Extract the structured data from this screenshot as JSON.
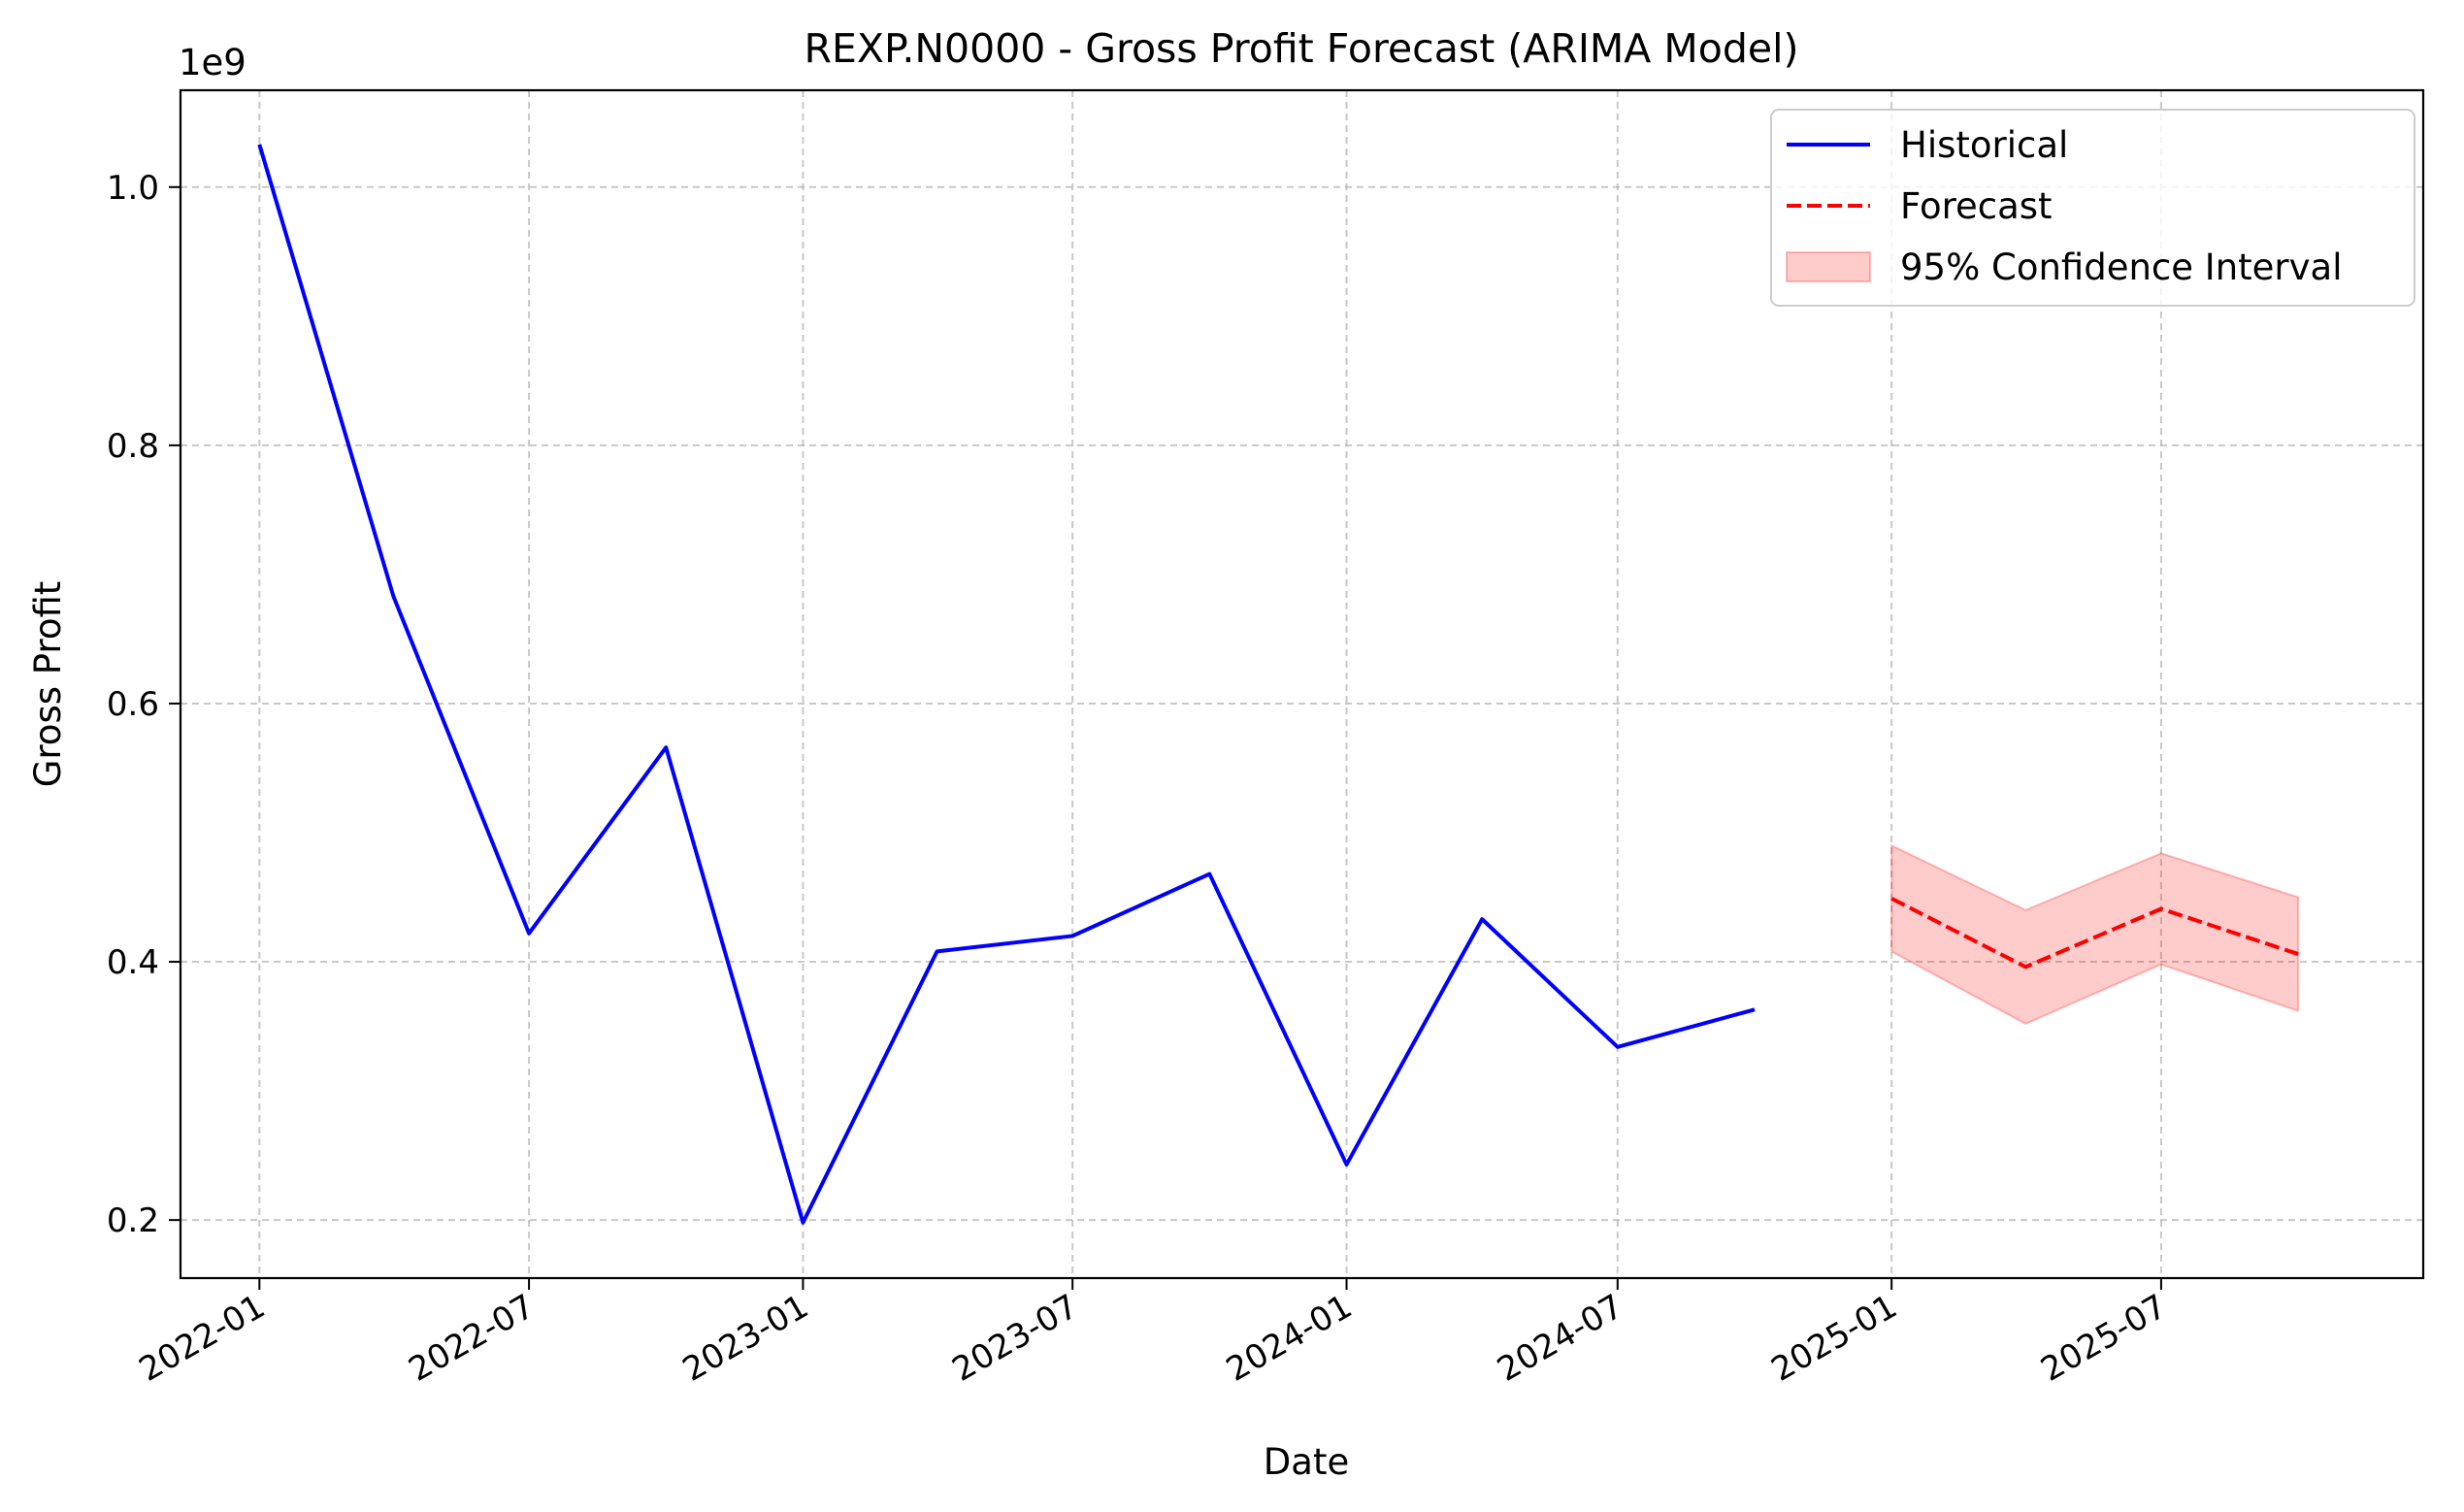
{
  "chart_data": {
    "type": "line",
    "title": "REXP.N0000 - Gross Profit Forecast (ARIMA Model)",
    "xlabel": "Date",
    "ylabel": "Gross Profit",
    "y_scale_label": "1e9",
    "ylim": [
      0.155,
      1.075
    ],
    "xlim": [
      "2021-11-09",
      "2025-12-24"
    ],
    "x_ticks": [
      "2022-01-01",
      "2022-07-01",
      "2023-01-01",
      "2023-07-01",
      "2024-01-01",
      "2024-07-01",
      "2025-01-01",
      "2025-07-01"
    ],
    "x_tick_labels": [
      "2022-01",
      "2022-07",
      "2023-01",
      "2023-07",
      "2024-01",
      "2024-07",
      "2025-01",
      "2025-07"
    ],
    "y_ticks": [
      0.2,
      0.4,
      0.6,
      0.8,
      1.0
    ],
    "y_tick_labels": [
      "0.2",
      "0.4",
      "0.6",
      "0.8",
      "1.0"
    ],
    "grid": true,
    "legend_position": "top-right",
    "series": [
      {
        "name": "Historical",
        "style": "solid",
        "color": "#0000ff",
        "x": [
          "2022-01-01",
          "2022-04-01",
          "2022-07-01",
          "2022-10-01",
          "2023-01-01",
          "2023-04-01",
          "2023-07-01",
          "2023-10-01",
          "2024-01-01",
          "2024-04-01",
          "2024-07-01",
          "2024-10-01"
        ],
        "values": [
          1.033,
          0.683,
          0.422,
          0.566,
          0.198,
          0.408,
          0.42,
          0.468,
          0.243,
          0.433,
          0.334,
          0.363
        ]
      },
      {
        "name": "Forecast",
        "style": "dashed",
        "color": "#ff0000",
        "x": [
          "2025-01-01",
          "2025-04-01",
          "2025-07-01",
          "2025-10-01"
        ],
        "values": [
          0.449,
          0.396,
          0.441,
          0.406
        ]
      }
    ],
    "confidence_interval": {
      "name": "95% Confidence Interval",
      "color": "#ff0000",
      "x": [
        "2025-01-01",
        "2025-04-01",
        "2025-07-01",
        "2025-10-01"
      ],
      "lower": [
        0.408,
        0.352,
        0.398,
        0.362
      ],
      "upper": [
        0.49,
        0.44,
        0.484,
        0.45
      ]
    }
  }
}
